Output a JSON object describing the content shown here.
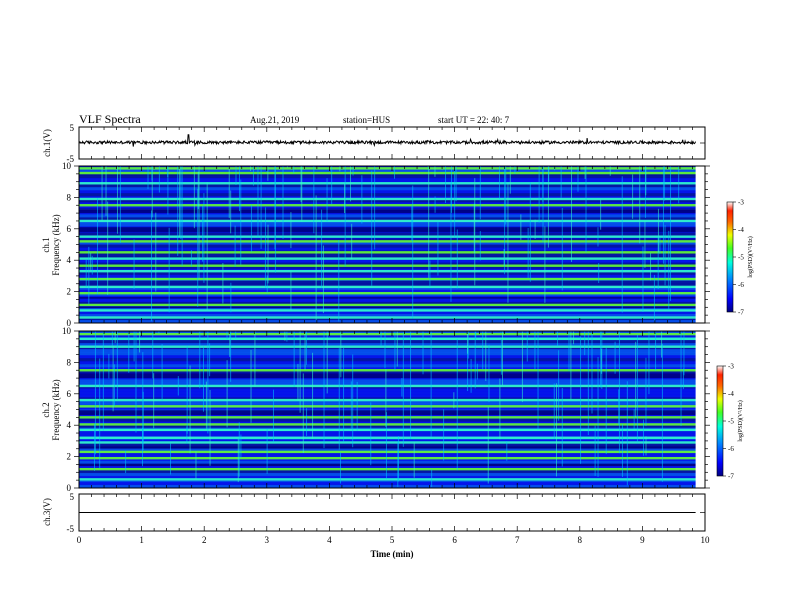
{
  "header": {
    "title": "VLF Spectra",
    "date": "Aug.21, 2019",
    "station": "station=HUS",
    "start": "start  UT =  22: 40: 7"
  },
  "colors": {
    "spectrogram_scale": [
      "#000080",
      "#0000ff",
      "#0066ff",
      "#00ccff",
      "#33ffcc",
      "#66ff33",
      "#ccff00",
      "#ffcc00",
      "#ff3300",
      "#ffffff"
    ],
    "waveform_line": "#000000"
  },
  "chart_data": [
    {
      "type": "line",
      "ylabel": "ch.1(V)",
      "ylim": [
        -5,
        5
      ],
      "yticks": [
        "5",
        "-5"
      ],
      "xlim": [
        0,
        10
      ],
      "note_level": 0.2
    },
    {
      "type": "heatmap",
      "ylabel_channel": "ch.1",
      "ylabel": "Frequency (kHz)",
      "ylim": [
        0,
        10
      ],
      "yticks": [
        "0",
        "2",
        "4",
        "6",
        "8",
        "10"
      ],
      "xlim": [
        0,
        10
      ],
      "colorbar": {
        "label": "log(PSD)(V²/Hz)",
        "range": [
          -7,
          -3
        ],
        "ticks": [
          "-3",
          "-4",
          "-5",
          "-6",
          "-7"
        ]
      },
      "strong_bands_khz": [
        0.35,
        0.8,
        1.15,
        1.9,
        2.3,
        2.8,
        3.3,
        3.65,
        4.1,
        4.5,
        5.2,
        5.5,
        6.5,
        7.5,
        7.9,
        8.9,
        9.55,
        9.85
      ],
      "weak_bands_khz": [
        [
          0.95,
          1.05
        ],
        [
          1.55,
          1.65
        ],
        [
          5.8,
          6.1
        ],
        [
          7.0,
          7.2
        ]
      ]
    },
    {
      "type": "heatmap",
      "ylabel_channel": "ch.2",
      "ylabel": "Frequency (kHz)",
      "ylim": [
        0,
        10
      ],
      "yticks": [
        "0",
        "2",
        "4",
        "6",
        "8",
        "10"
      ],
      "xlim": [
        0,
        10
      ],
      "colorbar": {
        "label": "log(PSD)(V²/Hz)",
        "range": [
          -7,
          -3
        ],
        "ticks": [
          "-3",
          "-4",
          "-5",
          "-6",
          "-7"
        ]
      },
      "strong_bands_khz": [
        0.55,
        1.2,
        1.9,
        2.3,
        2.9,
        3.2,
        3.7,
        4.05,
        4.5,
        5.2,
        5.6,
        6.5,
        7.5,
        9.0,
        9.5,
        9.8
      ],
      "weak_bands_khz": [
        [
          1.4,
          1.55
        ],
        [
          4.65,
          4.95
        ],
        [
          2.55,
          2.65
        ],
        [
          7.0,
          7.3
        ]
      ]
    },
    {
      "type": "line",
      "ylabel": "ch.3(V)",
      "ylim": [
        -5,
        5
      ],
      "yticks": [
        "5",
        "0",
        "-5"
      ],
      "xlim": [
        0,
        10
      ],
      "xlabel": "Time (min)",
      "xticks": [
        "0",
        "1",
        "2",
        "3",
        "4",
        "5",
        "6",
        "7",
        "8",
        "9",
        "10"
      ],
      "level": 0
    }
  ]
}
